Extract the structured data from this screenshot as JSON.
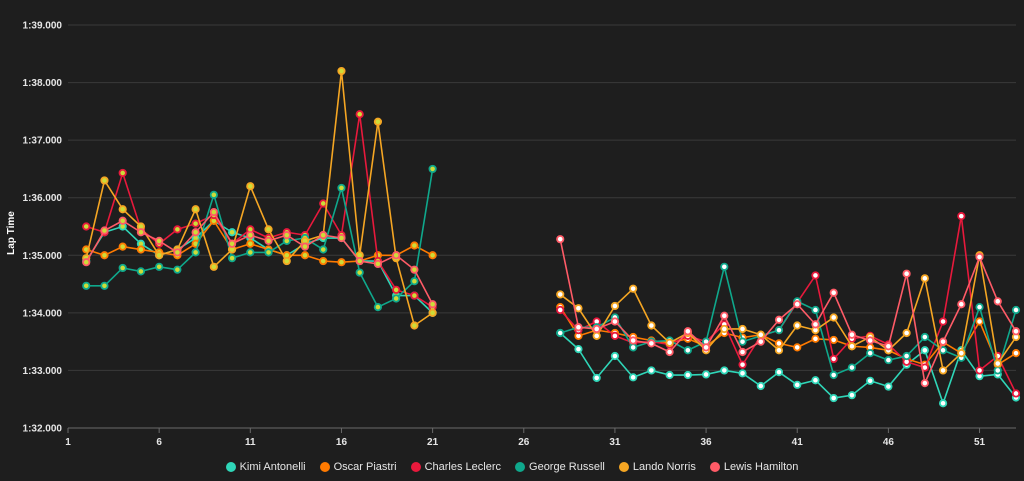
{
  "chart_data": {
    "type": "line",
    "ylabel": "Lap Time",
    "xlabel": "",
    "xlim": [
      1,
      53
    ],
    "x_ticks": [
      "1",
      "6",
      "11",
      "16",
      "21",
      "26",
      "31",
      "36",
      "41",
      "46",
      "51"
    ],
    "y_ticks": [
      "1:32.000",
      "1:33.000",
      "1:34.000",
      "1:35.000",
      "1:36.000",
      "1:37.000",
      "1:38.000",
      "1:39.000"
    ],
    "ylim": [
      92,
      99
    ],
    "grid": true,
    "legend_position": "bottom",
    "series": [
      {
        "name": "Kimi Antonelli",
        "color": "#2fd6b8",
        "x": [
          2,
          3,
          4,
          5,
          6,
          7,
          8,
          9,
          10,
          11,
          12,
          13,
          14,
          15,
          16,
          17,
          18,
          19,
          20,
          21,
          28,
          29,
          30,
          31,
          32,
          33,
          34,
          35,
          36,
          37,
          38,
          39,
          40,
          41,
          42,
          43,
          44,
          45,
          46,
          47,
          48,
          49,
          50,
          51,
          52,
          53
        ],
        "y": [
          94.9,
          95.4,
          95.5,
          95.2,
          95.0,
          95.1,
          95.3,
          95.6,
          95.4,
          95.3,
          95.1,
          95.0,
          95.2,
          95.3,
          95.3,
          94.9,
          94.9,
          94.3,
          94.3,
          94.0,
          93.65,
          93.37,
          92.87,
          93.25,
          92.88,
          93.0,
          92.92,
          92.92,
          92.93,
          93.0,
          92.95,
          92.73,
          92.97,
          92.75,
          92.83,
          92.52,
          92.57,
          92.82,
          92.72,
          93.1,
          93.35,
          92.43,
          93.35,
          92.9,
          92.93,
          92.53
        ]
      },
      {
        "name": "Oscar Piastri",
        "color": "#ff7a00",
        "x": [
          2,
          3,
          4,
          5,
          6,
          7,
          8,
          9,
          10,
          11,
          12,
          13,
          14,
          15,
          16,
          17,
          18,
          19,
          20,
          21,
          28,
          29,
          30,
          31,
          32,
          33,
          34,
          35,
          36,
          37,
          38,
          39,
          40,
          41,
          42,
          43,
          44,
          45,
          46,
          47,
          48,
          49,
          50,
          51,
          52,
          53
        ],
        "y": [
          95.1,
          95.0,
          95.15,
          95.1,
          95.05,
          95.0,
          95.2,
          95.6,
          95.1,
          95.2,
          95.1,
          95.0,
          95.0,
          94.9,
          94.88,
          94.9,
          95.0,
          95.0,
          95.17,
          95.0,
          94.1,
          93.6,
          93.7,
          93.65,
          93.58,
          93.52,
          93.48,
          93.55,
          93.42,
          93.65,
          93.57,
          93.62,
          93.47,
          93.4,
          93.55,
          93.53,
          93.42,
          93.4,
          93.35,
          93.2,
          93.1,
          93.49,
          93.3,
          93.85,
          93.1,
          93.3
        ]
      },
      {
        "name": "Charles Leclerc",
        "color": "#e8193c",
        "x": [
          2,
          3,
          4,
          5,
          6,
          7,
          8,
          9,
          10,
          11,
          12,
          13,
          14,
          15,
          16,
          17,
          18,
          19,
          20,
          21,
          28,
          29,
          30,
          31,
          32,
          33,
          34,
          35,
          36,
          37,
          38,
          39,
          40,
          41,
          42,
          43,
          44,
          45,
          46,
          47,
          48,
          49,
          50,
          51,
          52,
          53
        ],
        "y": [
          95.5,
          95.4,
          96.43,
          95.45,
          95.2,
          95.45,
          95.55,
          95.7,
          95.2,
          95.45,
          95.3,
          95.4,
          95.35,
          95.9,
          95.35,
          97.45,
          94.9,
          94.4,
          94.3,
          94.1,
          94.05,
          93.7,
          93.85,
          93.6,
          93.48,
          93.5,
          93.45,
          93.6,
          93.5,
          93.8,
          93.1,
          93.6,
          93.7,
          94.18,
          94.65,
          93.2,
          93.55,
          93.6,
          93.45,
          93.15,
          93.05,
          93.85,
          95.68,
          93.0,
          93.25,
          92.6
        ]
      },
      {
        "name": "George Russell",
        "color": "#0fa88c",
        "x": [
          2,
          3,
          4,
          5,
          6,
          7,
          8,
          9,
          10,
          11,
          12,
          13,
          14,
          15,
          16,
          17,
          18,
          19,
          20,
          21,
          28,
          29,
          30,
          31,
          32,
          33,
          34,
          35,
          36,
          37,
          38,
          39,
          40,
          41,
          42,
          43,
          44,
          45,
          46,
          47,
          48,
          49,
          50,
          51,
          52,
          53
        ],
        "y": [
          94.47,
          94.47,
          94.78,
          94.72,
          94.8,
          94.75,
          95.05,
          96.05,
          94.95,
          95.05,
          95.05,
          95.25,
          95.3,
          95.1,
          96.17,
          94.7,
          94.1,
          94.25,
          94.55,
          96.5,
          93.65,
          93.75,
          93.75,
          93.92,
          93.4,
          93.5,
          93.52,
          93.35,
          93.5,
          94.8,
          93.5,
          93.6,
          93.7,
          94.2,
          94.05,
          92.92,
          93.05,
          93.3,
          93.18,
          93.25,
          93.58,
          93.35,
          93.22,
          94.1,
          93.0,
          94.05
        ]
      },
      {
        "name": "Lando Norris",
        "color": "#f5a623",
        "x": [
          2,
          3,
          4,
          5,
          6,
          7,
          8,
          9,
          10,
          11,
          12,
          13,
          14,
          15,
          16,
          17,
          18,
          19,
          20,
          21,
          28,
          29,
          30,
          31,
          32,
          33,
          34,
          35,
          36,
          37,
          38,
          39,
          40,
          41,
          42,
          43,
          44,
          45,
          46,
          47,
          48,
          49,
          50,
          51,
          52,
          53
        ],
        "y": [
          94.95,
          96.3,
          95.8,
          95.5,
          95.0,
          95.1,
          95.8,
          94.8,
          95.1,
          96.2,
          95.45,
          94.9,
          95.25,
          95.35,
          98.2,
          95.0,
          97.32,
          94.95,
          93.78,
          94.0,
          94.32,
          94.08,
          93.6,
          94.12,
          94.42,
          93.78,
          93.48,
          93.65,
          93.35,
          93.72,
          93.72,
          93.62,
          93.35,
          93.78,
          93.7,
          93.92,
          93.42,
          93.58,
          93.35,
          93.65,
          94.6,
          93.0,
          93.3,
          95.0,
          93.12,
          93.58
        ]
      },
      {
        "name": "Lewis Hamilton",
        "color": "#ff5b67",
        "x": [
          2,
          3,
          4,
          5,
          6,
          7,
          8,
          9,
          10,
          11,
          12,
          13,
          14,
          15,
          16,
          17,
          18,
          19,
          20,
          21,
          28,
          29,
          30,
          31,
          32,
          33,
          34,
          35,
          36,
          37,
          38,
          39,
          40,
          41,
          42,
          43,
          44,
          45,
          46,
          47,
          48,
          49,
          50,
          51,
          52,
          53
        ],
        "y": [
          94.88,
          95.43,
          95.6,
          95.4,
          95.25,
          95.05,
          95.4,
          95.75,
          95.2,
          95.35,
          95.25,
          95.35,
          95.15,
          95.35,
          95.3,
          94.9,
          94.85,
          95.0,
          94.75,
          94.15,
          95.28,
          93.75,
          93.72,
          93.85,
          93.52,
          93.47,
          93.32,
          93.68,
          93.4,
          93.95,
          93.32,
          93.5,
          93.88,
          94.15,
          93.8,
          94.35,
          93.62,
          93.52,
          93.42,
          94.68,
          92.78,
          93.5,
          94.15,
          94.97,
          94.2,
          93.68
        ]
      }
    ]
  }
}
